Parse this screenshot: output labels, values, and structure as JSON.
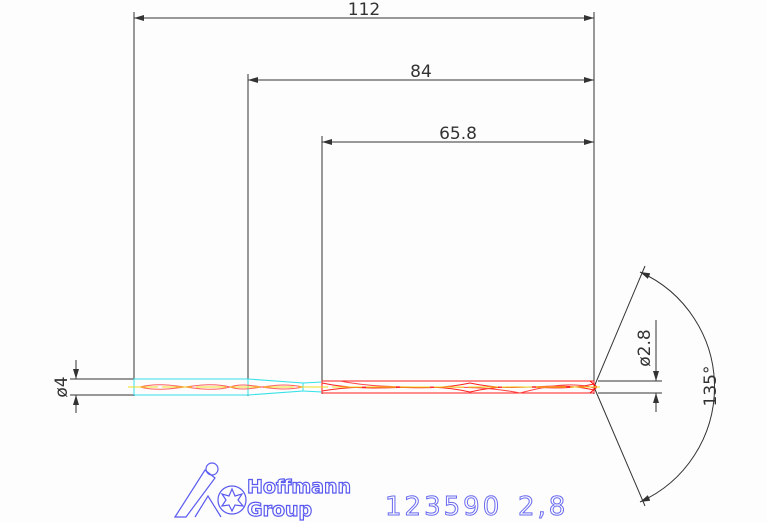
{
  "dimensions": {
    "overall_length": "112",
    "flute_length_total": "84",
    "flute_length": "65.8",
    "shank_diameter": "ø4",
    "drill_diameter": "ø2.8",
    "point_angle": "135°"
  },
  "logo": {
    "line1": "Hoffmann",
    "line2": "Group"
  },
  "part": {
    "number": "123590",
    "size": "2,8"
  },
  "colors": {
    "dimension": "#333333",
    "shank": "#33e0e8",
    "flute": "#ff2020",
    "centerline": "#f0e020",
    "logo": "#5a5af0"
  }
}
